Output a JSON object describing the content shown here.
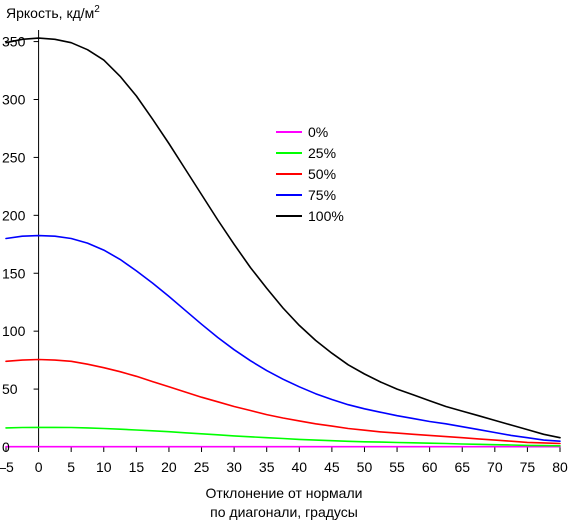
{
  "chart_data": {
    "type": "line",
    "title": "",
    "ylabel": "Яркость, кд/м",
    "ylabel_sup": "2",
    "xlabel_line1": "Отклонение от нормали",
    "xlabel_line2": "по диагонали, градусы",
    "xlim": [
      -5,
      80
    ],
    "ylim": [
      0,
      360
    ],
    "x_ticks": [
      -5,
      0,
      5,
      10,
      15,
      20,
      25,
      30,
      35,
      40,
      45,
      50,
      55,
      60,
      65,
      70,
      75,
      80
    ],
    "y_ticks": [
      0,
      50,
      100,
      150,
      200,
      250,
      300,
      350
    ],
    "grid": false,
    "legend_position": "center-right",
    "x": [
      -5,
      -2.5,
      0,
      2.5,
      5,
      7.5,
      10,
      12.5,
      15,
      17.5,
      20,
      22.5,
      25,
      27.5,
      30,
      32.5,
      35,
      37.5,
      40,
      42.5,
      45,
      47.5,
      50,
      52.5,
      55,
      57.5,
      60,
      62.5,
      65,
      67.5,
      70,
      72.5,
      75,
      77.5,
      80
    ],
    "series": [
      {
        "name": "0%",
        "color": "#ff00ff",
        "values": [
          0.3,
          0.3,
          0.3,
          0.3,
          0.3,
          0.3,
          0.3,
          0.3,
          0.3,
          0.3,
          0.3,
          0.3,
          0.3,
          0.3,
          0.3,
          0.3,
          0.3,
          0.3,
          0.3,
          0.3,
          0.3,
          0.3,
          0.3,
          0.3,
          0.3,
          0.3,
          0.3,
          0.3,
          0.3,
          0.3,
          0.3,
          0.3,
          0.3,
          0.3,
          0.3
        ]
      },
      {
        "name": "25%",
        "color": "#00ff00",
        "values": [
          16.5,
          16.8,
          16.9,
          16.9,
          16.8,
          16.5,
          16,
          15.4,
          14.7,
          14,
          13.2,
          12.3,
          11.4,
          10.5,
          9.6,
          8.8,
          8,
          7.3,
          6.6,
          6,
          5.4,
          4.9,
          4.5,
          4.2,
          3.9,
          3.6,
          3.3,
          3,
          2.6,
          2.3,
          2,
          1.7,
          1.4,
          1.2,
          1
        ]
      },
      {
        "name": "50%",
        "color": "#ff0000",
        "values": [
          74,
          75,
          75.5,
          75,
          74,
          71.5,
          68.5,
          65,
          61,
          56.5,
          52,
          47.5,
          43,
          39,
          35,
          31.5,
          28,
          25,
          22.5,
          20,
          18,
          16,
          14.5,
          13,
          12,
          11,
          10,
          9,
          8,
          7,
          6,
          5,
          4,
          3.5,
          3
        ]
      },
      {
        "name": "75%",
        "color": "#0000ff",
        "values": [
          180,
          182,
          182.5,
          182,
          180,
          176,
          170,
          162,
          152,
          141.5,
          130,
          118,
          106,
          94.5,
          84,
          74.5,
          66,
          58.5,
          52,
          46,
          41,
          36.5,
          33,
          30,
          27,
          24.5,
          22,
          20,
          17.5,
          15,
          12.5,
          10,
          8,
          6,
          5
        ]
      },
      {
        "name": "100%",
        "color": "#000000",
        "values": [
          349,
          352,
          353,
          352,
          349,
          343,
          334,
          320,
          303,
          283,
          262,
          240,
          218,
          196,
          175,
          155,
          137,
          120,
          105,
          92,
          81,
          71,
          63,
          56,
          50,
          45,
          40,
          35,
          31,
          27,
          23,
          19,
          15,
          11,
          8
        ]
      }
    ]
  }
}
